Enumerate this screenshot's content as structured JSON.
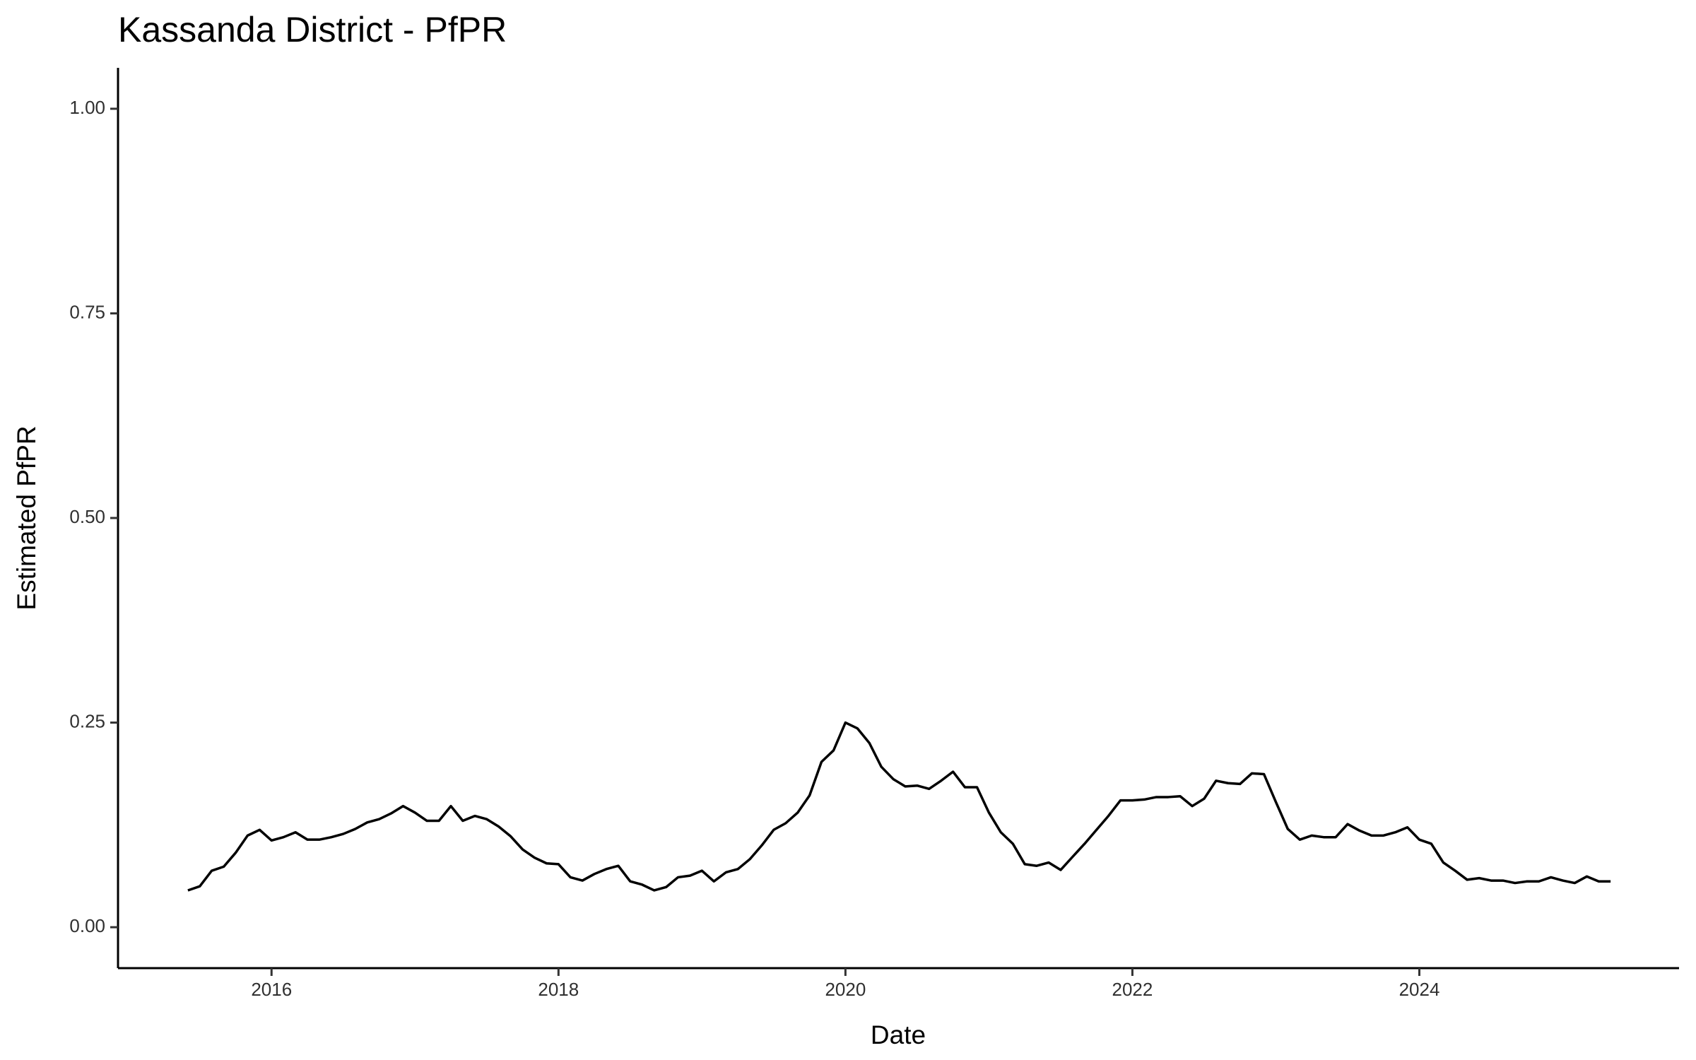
{
  "chart_data": {
    "type": "line",
    "title": "Kassanda District - PfPR",
    "x_label": "Date",
    "y_label": "Estimated PfPR",
    "color": "#000000",
    "grid": false,
    "x": [
      2015.417,
      2015.5,
      2015.583,
      2015.667,
      2015.75,
      2015.833,
      2015.917,
      2016.0,
      2016.083,
      2016.167,
      2016.25,
      2016.333,
      2016.417,
      2016.5,
      2016.583,
      2016.667,
      2016.75,
      2016.833,
      2016.917,
      2017.0,
      2017.083,
      2017.167,
      2017.25,
      2017.333,
      2017.417,
      2017.5,
      2017.583,
      2017.667,
      2017.75,
      2017.833,
      2017.917,
      2018.0,
      2018.083,
      2018.167,
      2018.25,
      2018.333,
      2018.417,
      2018.5,
      2018.583,
      2018.667,
      2018.75,
      2018.833,
      2018.917,
      2019.0,
      2019.083,
      2019.167,
      2019.25,
      2019.333,
      2019.417,
      2019.5,
      2019.583,
      2019.667,
      2019.75,
      2019.833,
      2019.917,
      2020.0,
      2020.083,
      2020.167,
      2020.25,
      2020.333,
      2020.417,
      2020.5,
      2020.583,
      2020.667,
      2020.75,
      2020.833,
      2020.917,
      2021.0,
      2021.083,
      2021.167,
      2021.25,
      2021.333,
      2021.417,
      2021.5,
      2021.583,
      2021.667,
      2021.75,
      2021.833,
      2021.917,
      2022.0,
      2022.083,
      2022.167,
      2022.25,
      2022.333,
      2022.417,
      2022.5,
      2022.583,
      2022.667,
      2022.75,
      2022.833,
      2022.917,
      2023.0,
      2023.083,
      2023.167,
      2023.25,
      2023.333,
      2023.417,
      2023.5,
      2023.583,
      2023.667,
      2023.75,
      2023.833,
      2023.917,
      2024.0,
      2024.083,
      2024.167,
      2024.25,
      2024.333,
      2024.417,
      2024.5,
      2024.583,
      2024.667,
      2024.75,
      2024.833,
      2024.917,
      2025.0,
      2025.083,
      2025.167,
      2025.25,
      2025.333
    ],
    "values": [
      0.045,
      0.05,
      0.069,
      0.074,
      0.091,
      0.112,
      0.119,
      0.106,
      0.11,
      0.116,
      0.107,
      0.107,
      0.11,
      0.114,
      0.12,
      0.128,
      0.132,
      0.139,
      0.148,
      0.14,
      0.13,
      0.13,
      0.148,
      0.13,
      0.136,
      0.132,
      0.123,
      0.111,
      0.095,
      0.085,
      0.078,
      0.077,
      0.061,
      0.057,
      0.065,
      0.071,
      0.075,
      0.056,
      0.052,
      0.045,
      0.049,
      0.061,
      0.063,
      0.069,
      0.056,
      0.067,
      0.071,
      0.083,
      0.1,
      0.119,
      0.127,
      0.14,
      0.161,
      0.202,
      0.216,
      0.25,
      0.243,
      0.225,
      0.196,
      0.181,
      0.172,
      0.173,
      0.169,
      0.179,
      0.19,
      0.171,
      0.171,
      0.14,
      0.116,
      0.102,
      0.077,
      0.075,
      0.079,
      0.07,
      0.086,
      0.102,
      0.119,
      0.136,
      0.155,
      0.155,
      0.156,
      0.159,
      0.159,
      0.16,
      0.148,
      0.157,
      0.179,
      0.176,
      0.175,
      0.188,
      0.187,
      0.153,
      0.12,
      0.107,
      0.112,
      0.11,
      0.11,
      0.126,
      0.118,
      0.112,
      0.112,
      0.116,
      0.122,
      0.107,
      0.102,
      0.079,
      0.069,
      0.058,
      0.06,
      0.057,
      0.057,
      0.054,
      0.056,
      0.056,
      0.061,
      0.057,
      0.054,
      0.062,
      0.056,
      0.056
    ],
    "xlim": [
      2014.93,
      2025.81
    ],
    "ylim": [
      -0.05,
      1.05
    ],
    "xticks": [
      2016,
      2018,
      2020,
      2022,
      2024
    ],
    "yticks": [
      {
        "value": 0,
        "label": "0.00"
      },
      {
        "value": 0.25,
        "label": "0.25"
      },
      {
        "value": 0.5,
        "label": "0.50"
      },
      {
        "value": 0.75,
        "label": "0.75"
      },
      {
        "value": 1,
        "label": "1.00"
      }
    ]
  }
}
